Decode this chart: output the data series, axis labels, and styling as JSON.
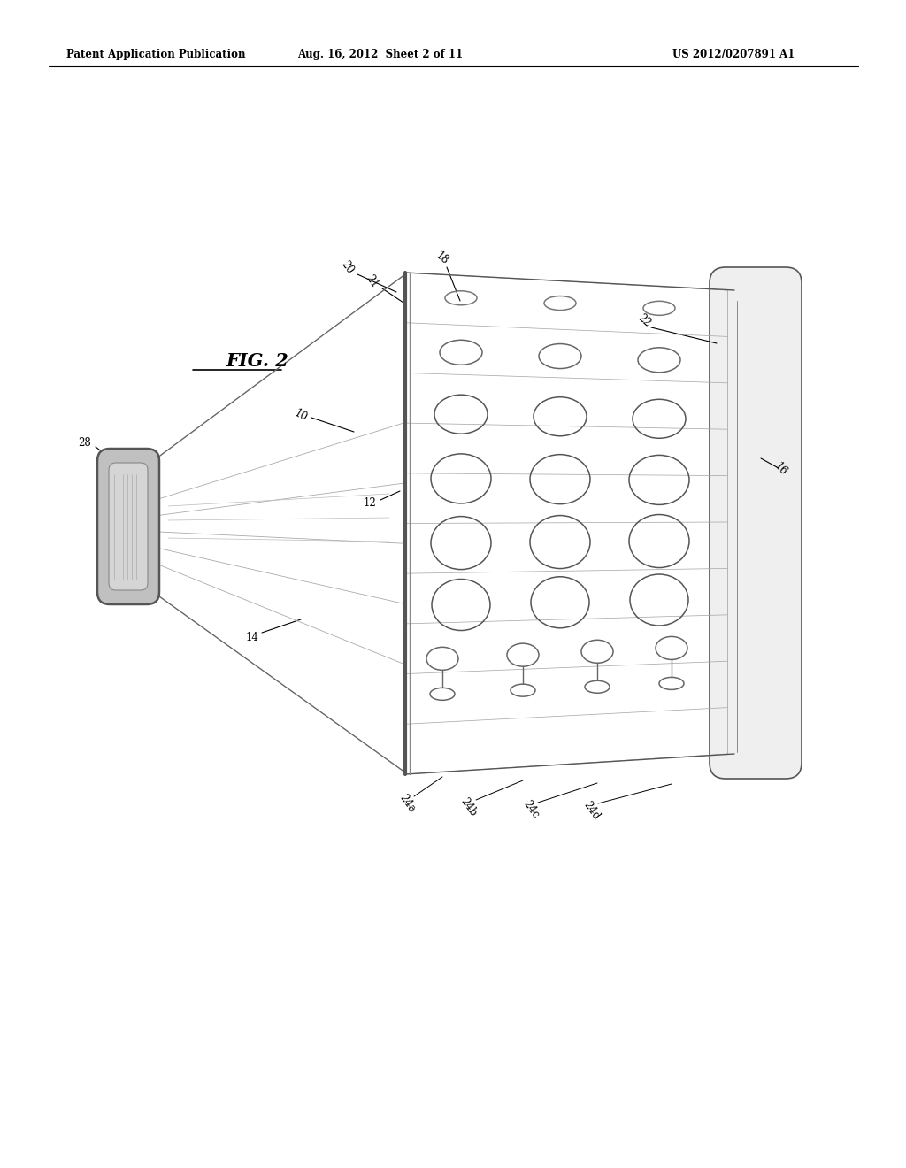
{
  "bg_color": "#ffffff",
  "header_left": "Patent Application Publication",
  "header_mid": "Aug. 16, 2012  Sheet 2 of 11",
  "header_right": "US 2012/0207891 A1",
  "fig_label": "FIG. 2",
  "line_color": "#444444",
  "light_line": "#888888",
  "panel_bg": "#f8f8f8",
  "handle_gray": "#b0b0b0",
  "handle_dark": "#888888"
}
